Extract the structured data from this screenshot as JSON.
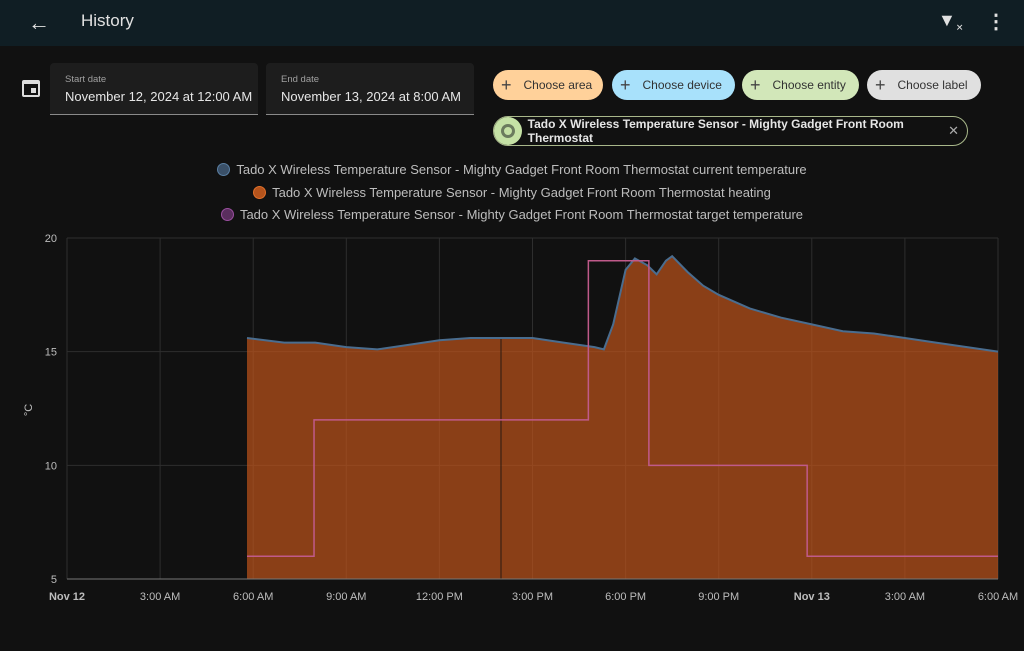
{
  "header": {
    "title": "History",
    "back_icon": "arrow-left-icon",
    "filter_icon": "filter-remove-icon",
    "menu_icon": "dots-vertical-icon"
  },
  "dates": {
    "start_label": "Start date",
    "start_value": "November 12, 2024 at 12:00 AM",
    "end_label": "End date",
    "end_value": "November 13, 2024 at 8:00 AM"
  },
  "chips": [
    {
      "label": "Choose area",
      "color": "#ffd19a"
    },
    {
      "label": "Choose device",
      "color": "#a8e1fb"
    },
    {
      "label": "Choose entity",
      "color": "#d2e7b9"
    },
    {
      "label": "Choose label",
      "color": "#e0e0e0"
    }
  ],
  "selected": {
    "label": "Tado X Wireless Temperature Sensor - Mighty Gadget Front Room Thermostat"
  },
  "chart_data": {
    "type": "line",
    "ylabel": "°C",
    "ylim": [
      5,
      20
    ],
    "yticks": [
      "20",
      "15",
      "10",
      "5"
    ],
    "xlim_hours": [
      0,
      30
    ],
    "xticks": [
      {
        "h": 0,
        "label": "Nov 12",
        "bold": true
      },
      {
        "h": 3,
        "label": "3:00 AM"
      },
      {
        "h": 6,
        "label": "6:00 AM"
      },
      {
        "h": 9,
        "label": "9:00 AM"
      },
      {
        "h": 12,
        "label": "12:00 PM"
      },
      {
        "h": 15,
        "label": "3:00 PM"
      },
      {
        "h": 18,
        "label": "6:00 PM"
      },
      {
        "h": 21,
        "label": "9:00 PM"
      },
      {
        "h": 24,
        "label": "Nov 13",
        "bold": true
      },
      {
        "h": 27,
        "label": "3:00 AM"
      },
      {
        "h": 30,
        "label": "6:00 AM"
      }
    ],
    "series": [
      {
        "name": "Tado X Wireless Temperature Sensor - Mighty Gadget Front Room Thermostat current temperature",
        "color": "#4a6d8f",
        "points": [
          [
            5.8,
            15.6
          ],
          [
            7,
            15.4
          ],
          [
            8,
            15.4
          ],
          [
            9,
            15.2
          ],
          [
            10,
            15.1
          ],
          [
            11,
            15.3
          ],
          [
            12,
            15.5
          ],
          [
            13,
            15.6
          ],
          [
            14,
            15.6
          ],
          [
            15,
            15.6
          ],
          [
            16,
            15.4
          ],
          [
            17,
            15.2
          ],
          [
            17.3,
            15.1
          ],
          [
            17.6,
            16.2
          ],
          [
            18,
            18.6
          ],
          [
            18.3,
            19.1
          ],
          [
            18.7,
            18.8
          ],
          [
            19,
            18.4
          ],
          [
            19.3,
            19.0
          ],
          [
            19.5,
            19.2
          ],
          [
            20,
            18.5
          ],
          [
            20.5,
            17.9
          ],
          [
            21,
            17.5
          ],
          [
            22,
            16.9
          ],
          [
            23,
            16.5
          ],
          [
            24,
            16.2
          ],
          [
            25,
            15.9
          ],
          [
            26,
            15.8
          ],
          [
            27,
            15.6
          ],
          [
            28,
            15.4
          ],
          [
            29,
            15.2
          ],
          [
            30,
            15.0
          ]
        ]
      },
      {
        "name": "Tado X Wireless Temperature Sensor - Mighty Gadget Front Room Thermostat heating",
        "color": "#c4561a",
        "fill": true
      },
      {
        "name": "Tado X Wireless Temperature Sensor - Mighty Gadget Front Room Thermostat target temperature",
        "color": "#9b4fa0",
        "steps": [
          [
            5.8,
            6
          ],
          [
            7.96,
            12
          ],
          [
            16.8,
            19
          ],
          [
            18.75,
            10
          ],
          [
            23.85,
            6
          ],
          [
            30,
            6
          ]
        ]
      }
    ]
  }
}
